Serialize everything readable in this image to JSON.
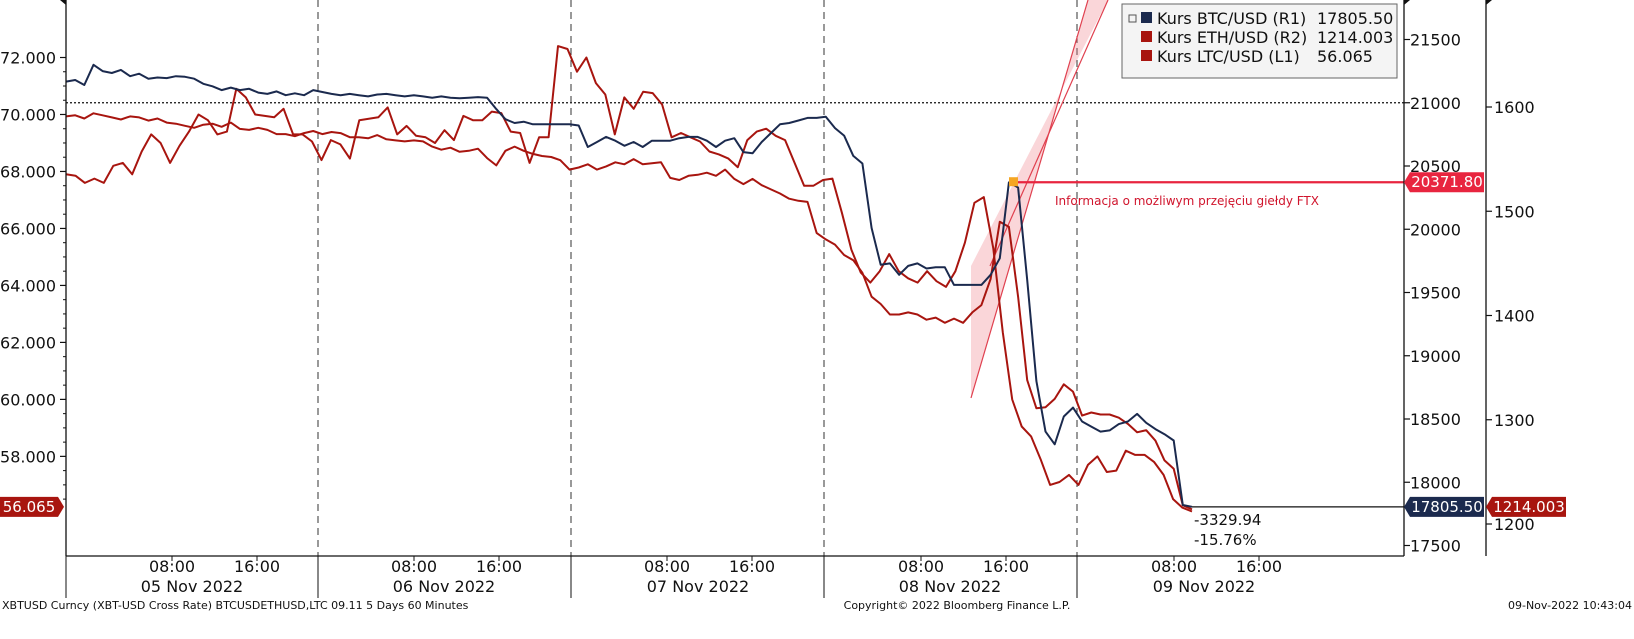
{
  "chart_data": {
    "type": "line",
    "title": "",
    "x_tick_labels": [
      "08:00",
      "16:00",
      "08:00",
      "16:00",
      "08:00",
      "16:00",
      "08:00",
      "16:00",
      "08:00",
      "16:00"
    ],
    "day_labels": [
      "05 Nov 2022",
      "06 Nov 2022",
      "07 Nov 2022",
      "08 Nov 2022",
      "09 Nov 2022"
    ],
    "left_axis": {
      "ticks": [
        "58.000",
        "60.000",
        "62.000",
        "64.000",
        "66.000",
        "68.000",
        "70.000",
        "72.000"
      ],
      "range": [
        54.5,
        74.0
      ]
    },
    "right_axis_r1": {
      "ticks": [
        "17500",
        "18000",
        "18500",
        "19000",
        "19500",
        "20000",
        "20500",
        "21000",
        "21500"
      ],
      "range": [
        17400,
        21900
      ]
    },
    "right_axis_r2": {
      "ticks": [
        "1200",
        "1300",
        "1400",
        "1500",
        "1600"
      ],
      "range": [
        1192,
        1612
      ]
    },
    "series": [
      {
        "name": "Kurs BTC/USD (R1)",
        "last": "17805.50",
        "axis": "R1",
        "color": "#1b2a4e",
        "values": [
          21167,
          21180,
          21140,
          21300,
          21250,
          21235,
          21260,
          21210,
          21230,
          21190,
          21200,
          21195,
          21210,
          21205,
          21190,
          21150,
          21130,
          21100,
          21120,
          21100,
          21110,
          21080,
          21070,
          21090,
          21060,
          21075,
          21060,
          21100,
          21085,
          21070,
          21060,
          21070,
          21060,
          21050,
          21065,
          21070,
          21060,
          21050,
          21060,
          21050,
          21040,
          21050,
          21040,
          21035,
          21040,
          21045,
          21040,
          20950,
          20870,
          20840,
          20850,
          20830,
          20830,
          20830,
          20830,
          20830,
          20820,
          20650,
          20690,
          20730,
          20700,
          20660,
          20690,
          20650,
          20700,
          20700,
          20700,
          20720,
          20730,
          20730,
          20700,
          20650,
          20700,
          20720,
          20610,
          20600,
          20690,
          20760,
          20830,
          20840,
          20860,
          20880,
          20880,
          20890,
          20800,
          20740,
          20580,
          20520,
          20010,
          19720,
          19730,
          19640,
          19710,
          19730,
          19690,
          19700,
          19700,
          19560,
          19560,
          19560,
          19560,
          19640,
          19770,
          20370,
          20330,
          19600,
          18800,
          18400,
          18300,
          18520,
          18590,
          18480,
          18440,
          18400,
          18410,
          18460,
          18480,
          18540,
          18470,
          18420,
          18380,
          18330,
          17820,
          17806
        ],
        "times": [
          0,
          1,
          2,
          3,
          4,
          5,
          6,
          7,
          8,
          9,
          10,
          11,
          12,
          13,
          14,
          15,
          16,
          17,
          18,
          19,
          20,
          21,
          22,
          23,
          24,
          25,
          26,
          27,
          28,
          29,
          30,
          31,
          32,
          33,
          34,
          35,
          36,
          37,
          38,
          39,
          40,
          41,
          42,
          43,
          44,
          45,
          46,
          47,
          48,
          49,
          50,
          51,
          52,
          53,
          54,
          55,
          56,
          57,
          58,
          59,
          60,
          61,
          62,
          63,
          64,
          65,
          66,
          67,
          68,
          69,
          70,
          71,
          72,
          73,
          74,
          75,
          76,
          77,
          78,
          79,
          80,
          81,
          82,
          83,
          84,
          85,
          86,
          87,
          88,
          89,
          90,
          91,
          92,
          93,
          94,
          95,
          96,
          97,
          98,
          99,
          100,
          101,
          102,
          103,
          104,
          105,
          106,
          107,
          108,
          109,
          110,
          111,
          112,
          113,
          114,
          115,
          116,
          117,
          118,
          119,
          120,
          121,
          122,
          123
        ]
      },
      {
        "name": "Kurs ETH/USD (R2)",
        "last": "1214.003",
        "axis": "R2",
        "color": "#a8150f",
        "values": [
          1591,
          1592,
          1589,
          1594,
          1592,
          1590,
          1588,
          1591,
          1590,
          1587,
          1589,
          1585,
          1584,
          1582,
          1580,
          1583,
          1584,
          1581,
          1585,
          1579,
          1578,
          1580,
          1578,
          1574,
          1574,
          1572,
          1575,
          1577,
          1574,
          1576,
          1575,
          1571,
          1571,
          1570,
          1573,
          1569,
          1568,
          1567,
          1568,
          1567,
          1562,
          1559,
          1561,
          1557,
          1558,
          1560,
          1551,
          1544,
          1558,
          1562,
          1558,
          1555,
          1553,
          1552,
          1549,
          1540,
          1542,
          1545,
          1540,
          1543,
          1547,
          1545,
          1550,
          1545,
          1546,
          1547,
          1532,
          1530,
          1534,
          1535,
          1537,
          1534,
          1540,
          1531,
          1526,
          1531,
          1525,
          1521,
          1517,
          1512,
          1510,
          1509,
          1479,
          1473,
          1468,
          1458,
          1453,
          1441,
          1418,
          1411,
          1401,
          1401,
          1403,
          1401,
          1396,
          1398,
          1393,
          1397,
          1393,
          1403,
          1410,
          1435,
          1490,
          1485,
          1418,
          1338,
          1311,
          1312,
          1320,
          1334,
          1327,
          1304,
          1307,
          1305,
          1305,
          1302,
          1296,
          1288,
          1290,
          1280,
          1261,
          1253,
          1218,
          1214
        ],
        "times": [
          0,
          1,
          2,
          3,
          4,
          5,
          6,
          7,
          8,
          9,
          10,
          11,
          12,
          13,
          14,
          15,
          16,
          17,
          18,
          19,
          20,
          21,
          22,
          23,
          24,
          25,
          26,
          27,
          28,
          29,
          30,
          31,
          32,
          33,
          34,
          35,
          36,
          37,
          38,
          39,
          40,
          41,
          42,
          43,
          44,
          45,
          46,
          47,
          48,
          49,
          50,
          51,
          52,
          53,
          54,
          55,
          56,
          57,
          58,
          59,
          60,
          61,
          62,
          63,
          64,
          65,
          66,
          67,
          68,
          69,
          70,
          71,
          72,
          73,
          74,
          75,
          76,
          77,
          78,
          79,
          80,
          81,
          82,
          83,
          84,
          85,
          86,
          87,
          88,
          89,
          90,
          91,
          92,
          93,
          94,
          95,
          96,
          97,
          98,
          99,
          100,
          101,
          102,
          103,
          104,
          105,
          106,
          107,
          108,
          109,
          110,
          111,
          112,
          113,
          114,
          115,
          116,
          117,
          118,
          119,
          120,
          121,
          122,
          123
        ]
      },
      {
        "name": "Kurs LTC/USD (L1)",
        "last": "56.065",
        "axis": "L1",
        "color": "#a8150f",
        "values": [
          67.9,
          67.85,
          67.6,
          67.75,
          67.6,
          68.2,
          68.3,
          67.9,
          68.7,
          69.3,
          69.0,
          68.3,
          68.9,
          69.4,
          70.0,
          69.8,
          69.3,
          69.4,
          70.9,
          70.6,
          70.0,
          69.95,
          69.9,
          70.2,
          69.3,
          69.3,
          69.05,
          68.4,
          69.1,
          68.95,
          68.45,
          69.8,
          69.85,
          69.9,
          70.25,
          69.3,
          69.6,
          69.25,
          69.2,
          69.0,
          69.45,
          69.1,
          69.95,
          69.8,
          69.8,
          70.1,
          70.05,
          69.4,
          69.35,
          68.3,
          69.2,
          69.2,
          72.4,
          72.3,
          71.5,
          72.0,
          71.1,
          70.7,
          69.3,
          70.6,
          70.2,
          70.8,
          70.75,
          70.35,
          69.2,
          69.35,
          69.2,
          69.05,
          68.7,
          68.6,
          68.45,
          68.15,
          69.1,
          69.4,
          69.5,
          69.25,
          69.1,
          68.3,
          67.5,
          67.5,
          67.7,
          67.75,
          66.55,
          65.25,
          64.45,
          64.1,
          64.5,
          65.1,
          64.5,
          64.25,
          64.1,
          64.5,
          64.15,
          63.95,
          64.5,
          65.5,
          66.9,
          67.1,
          65.3,
          62.35,
          60.0,
          59.05,
          58.7,
          57.9,
          57.0,
          57.1,
          57.35,
          57.0,
          57.7,
          58.0,
          57.45,
          57.5,
          58.2,
          58.05,
          58.05,
          57.8,
          57.35,
          56.5,
          56.2,
          56.065
        ],
        "times": [
          0,
          1,
          2,
          3,
          4,
          5,
          6,
          7,
          8,
          9,
          10,
          11,
          12,
          13,
          14,
          15,
          16,
          17,
          18,
          19,
          20,
          21,
          22,
          23,
          24,
          25,
          26,
          27,
          28,
          29,
          30,
          31,
          32,
          33,
          34,
          35,
          36,
          37,
          38,
          39,
          40,
          41,
          42,
          43,
          44,
          45,
          46,
          47,
          48,
          49,
          50,
          51,
          52,
          53,
          54,
          55,
          56,
          57,
          58,
          59,
          60,
          61,
          62,
          63,
          64,
          65,
          66,
          67,
          68,
          69,
          70,
          71,
          72,
          73,
          74,
          75,
          76,
          77,
          78,
          79,
          80,
          81,
          82,
          83,
          84,
          85,
          86,
          87,
          88,
          89,
          90,
          91,
          92,
          93,
          94,
          95,
          96,
          97,
          98,
          99,
          100,
          101,
          102,
          103,
          104,
          105,
          106,
          107,
          108,
          109,
          110,
          111,
          112,
          113,
          114,
          115,
          116,
          117,
          118,
          119
        ]
      }
    ],
    "reference_level_r1": 21000,
    "annotation": {
      "text": "Informacja o możliwym przejęciu giełdy FTX",
      "level": "20371.80"
    },
    "change": {
      "abs": "-3329.94",
      "pct": "-15.76%"
    },
    "grid": {
      "vertical_day_separators": true,
      "dashed": true
    },
    "legend_position": "top-right"
  },
  "footer": {
    "left": "XBTUSD Curncy (XBT-USD Cross Rate) BTCUSDETHUSD,LTC 09.11 5 Days 60 Minutes",
    "center": "Copyright© 2022 Bloomberg Finance L.P.",
    "right": "09-Nov-2022 10:43:04"
  }
}
